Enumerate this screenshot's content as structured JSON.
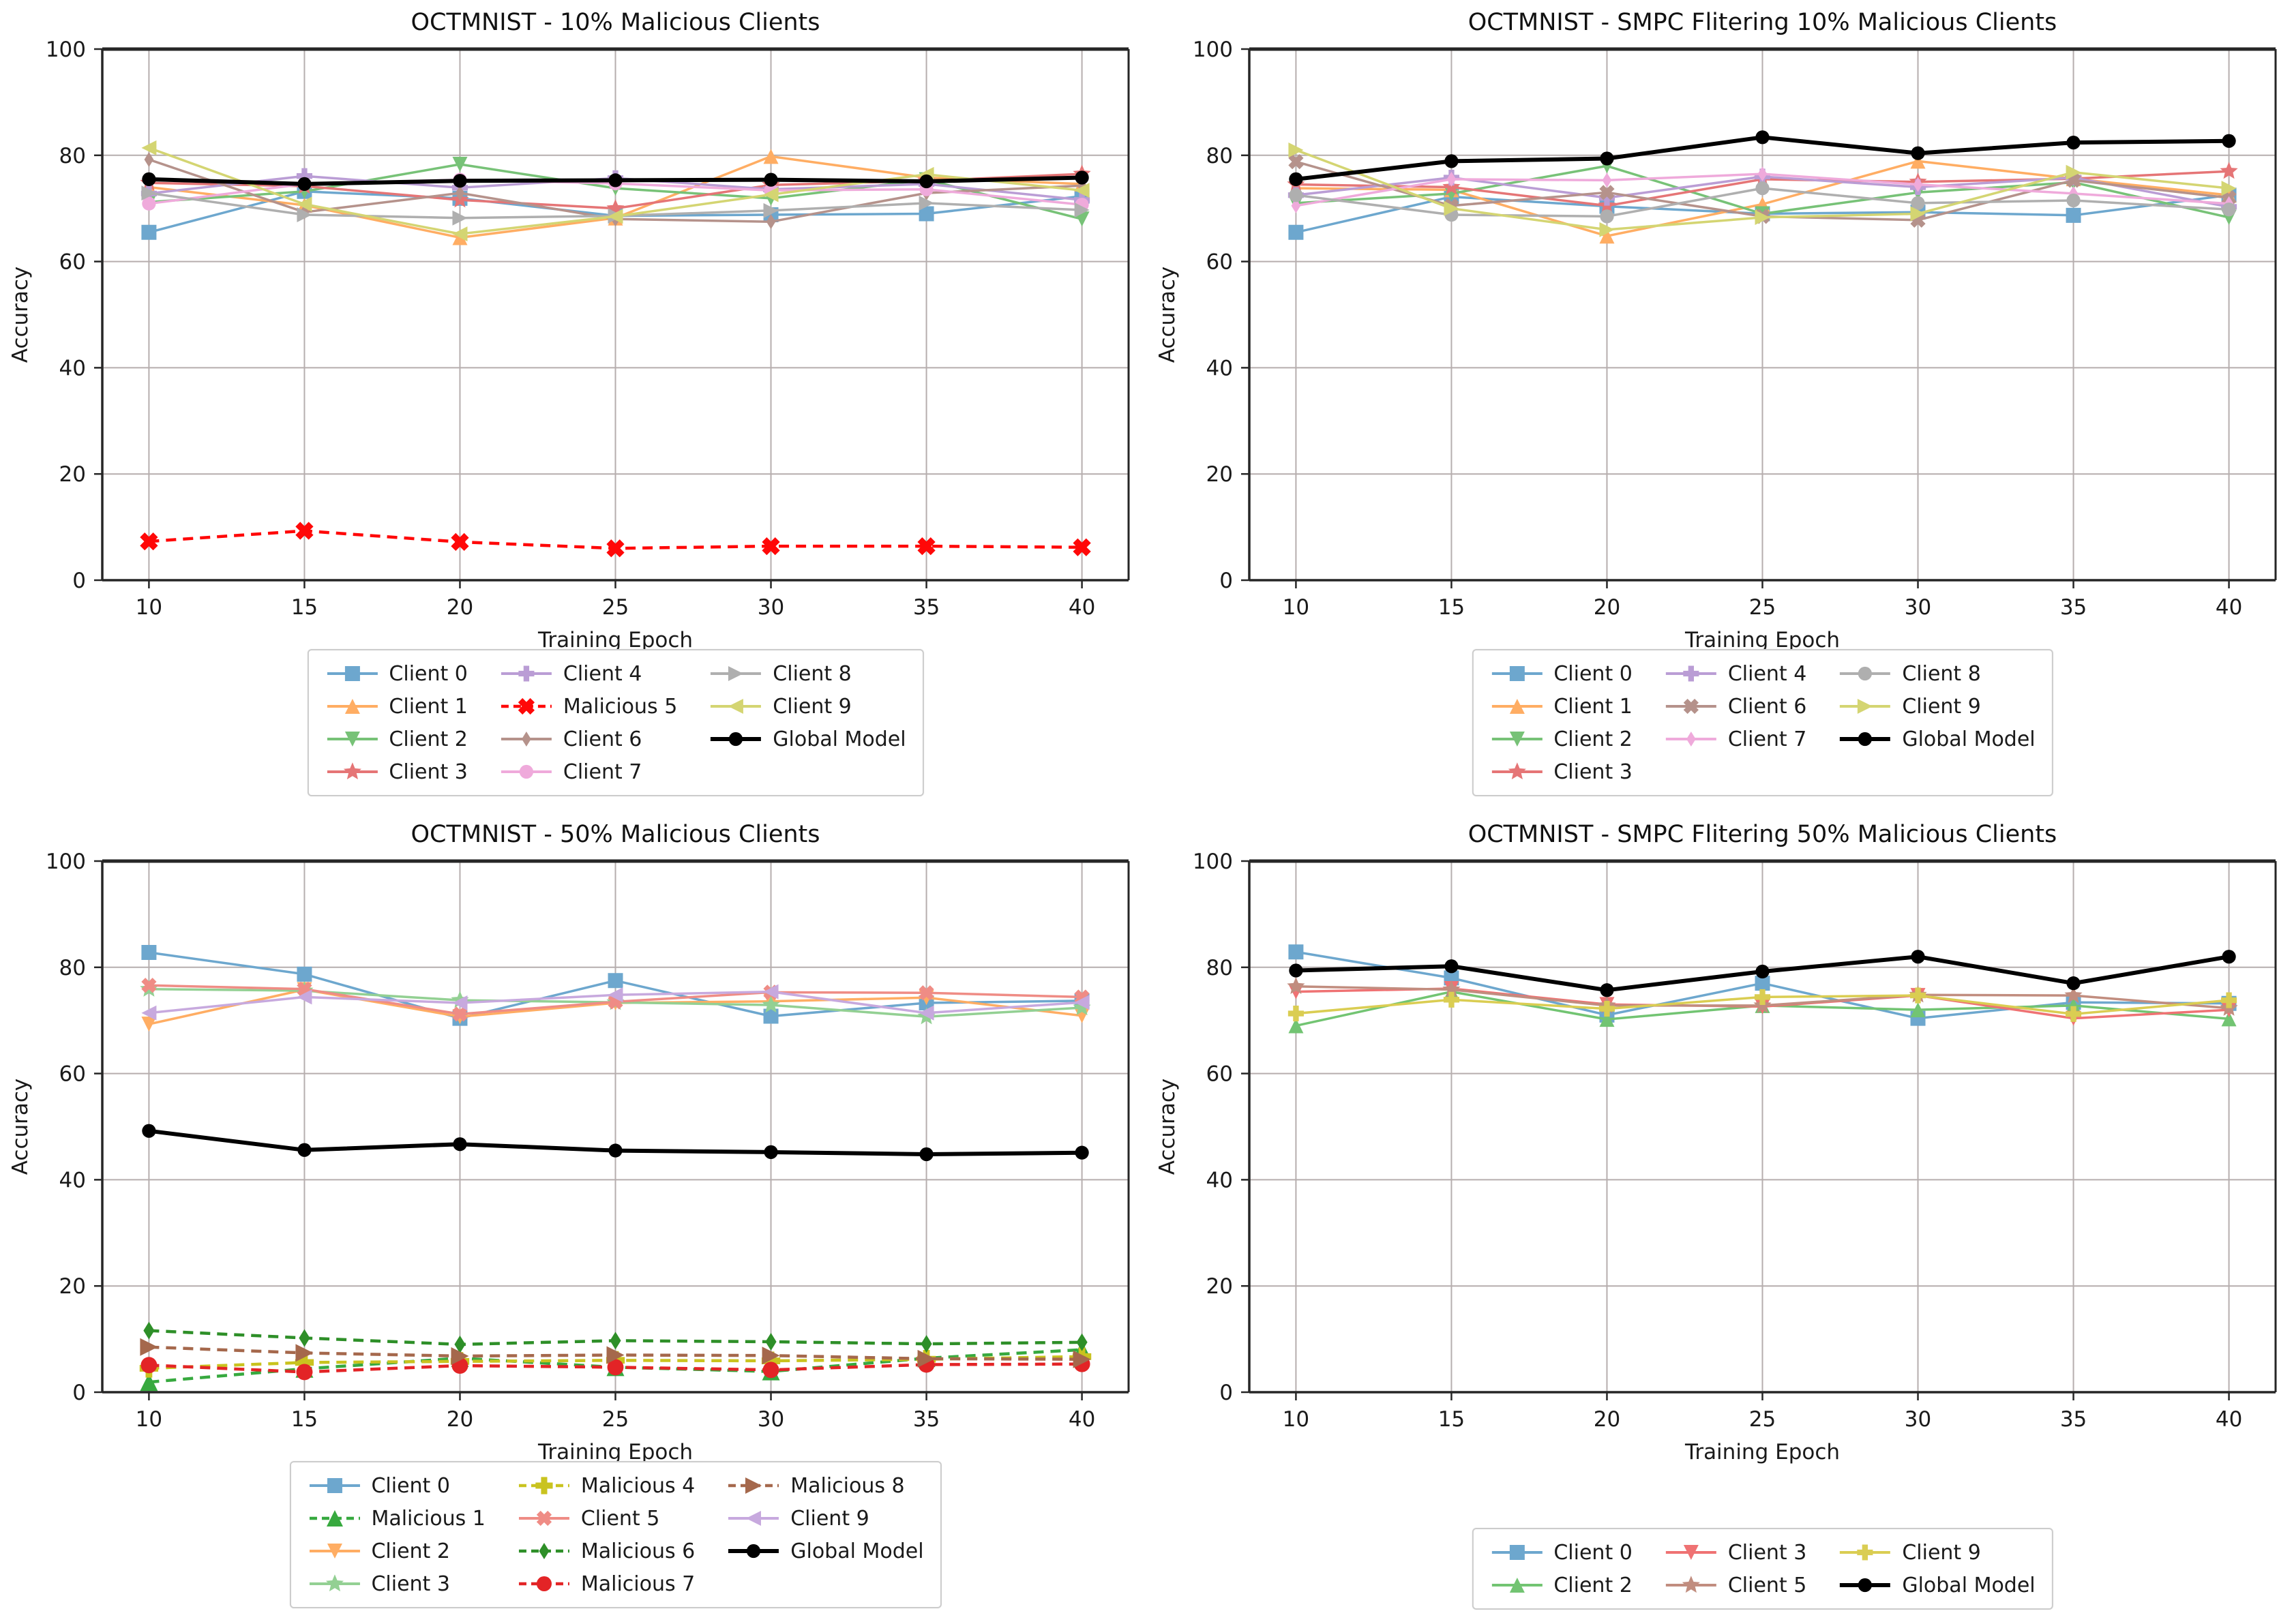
{
  "figure": {
    "background": "#ffffff",
    "grid_color": "#b6aeae",
    "spine_color": "#262626",
    "text_color": "#1a1a1a"
  },
  "chart_data": [
    {
      "type": "line",
      "id": "top-left",
      "title": "OCTMNIST - 10% Malicious Clients",
      "xlabel": "Training Epoch",
      "ylabel": "Accuracy",
      "x": [
        10,
        15,
        20,
        25,
        30,
        35,
        40
      ],
      "yticks": [
        0,
        20,
        40,
        60,
        80,
        100
      ],
      "ylim": [
        0,
        100
      ],
      "grid": true,
      "legend_position": "below-center",
      "series": [
        {
          "label": "Client 0",
          "role": "client",
          "color": "#6DA7CE",
          "marker": "s",
          "style": "solid",
          "values": [
            65.5,
            73.2,
            71.9,
            68.6,
            68.8,
            69.0,
            72.3
          ]
        },
        {
          "label": "Client 1",
          "role": "client",
          "color": "#FFAD63",
          "marker": "^",
          "style": "solid",
          "values": [
            74.0,
            70.6,
            64.5,
            68.2,
            79.8,
            75.8,
            74.6
          ]
        },
        {
          "label": "Client 2",
          "role": "client",
          "color": "#77C277",
          "marker": "v",
          "style": "solid",
          "values": [
            71.2,
            73.2,
            78.3,
            73.8,
            71.9,
            75.4,
            68.0
          ]
        },
        {
          "label": "Client 3",
          "role": "client",
          "color": "#E57576",
          "marker": "*",
          "style": "solid",
          "values": [
            74.8,
            74.2,
            71.6,
            70.0,
            74.4,
            75.2,
            76.5
          ]
        },
        {
          "label": "Client 4",
          "role": "client",
          "color": "#BA9DD5",
          "marker": "P",
          "style": "solid",
          "values": [
            72.8,
            76.1,
            73.9,
            75.7,
            73.6,
            74.6,
            71.6
          ]
        },
        {
          "label": "Malicious 5",
          "role": "malicious",
          "color": "#FF0808",
          "marker": "X",
          "style": "dashed",
          "values": [
            7.3,
            9.3,
            7.2,
            6.0,
            6.4,
            6.4,
            6.2
          ]
        },
        {
          "label": "Client 6",
          "role": "client",
          "color": "#B5928B",
          "marker": "d",
          "style": "solid",
          "values": [
            79.2,
            69.3,
            72.9,
            68.0,
            67.5,
            72.9,
            74.3
          ]
        },
        {
          "label": "Client 7",
          "role": "client",
          "color": "#EFAADB",
          "marker": "o",
          "style": "solid",
          "values": [
            70.9,
            74.6,
            75.4,
            74.7,
            73.4,
            73.6,
            70.7
          ]
        },
        {
          "label": "Client 8",
          "role": "client",
          "color": "#AFAFAF",
          "marker": ">",
          "style": "solid",
          "values": [
            72.9,
            68.8,
            68.2,
            68.6,
            69.6,
            71.0,
            69.7
          ]
        },
        {
          "label": "Client 9",
          "role": "client",
          "color": "#D4D572",
          "marker": "<",
          "style": "solid",
          "values": [
            81.4,
            70.8,
            65.2,
            68.5,
            72.6,
            76.4,
            73.4
          ]
        },
        {
          "label": "Global Model",
          "role": "global",
          "color": "#000000",
          "marker": "o",
          "style": "solid",
          "values": [
            75.5,
            74.6,
            75.2,
            75.3,
            75.4,
            75.1,
            75.8
          ]
        }
      ],
      "legend_columns": [
        [
          0,
          1,
          2,
          3
        ],
        [
          4,
          5,
          6,
          7
        ],
        [
          8,
          9,
          10
        ]
      ]
    },
    {
      "type": "line",
      "id": "top-right",
      "title": "OCTMNIST - SMPC Flitering 10% Malicious Clients",
      "xlabel": "Training Epoch",
      "ylabel": "Accuracy",
      "x": [
        10,
        15,
        20,
        25,
        30,
        35,
        40
      ],
      "yticks": [
        0,
        20,
        40,
        60,
        80,
        100
      ],
      "ylim": [
        0,
        100
      ],
      "grid": true,
      "legend_position": "below-center",
      "series": [
        {
          "label": "Client 0",
          "role": "client",
          "color": "#6DA7CE",
          "marker": "s",
          "style": "solid",
          "values": [
            65.5,
            72.2,
            70.4,
            69.0,
            69.3,
            68.7,
            72.5
          ]
        },
        {
          "label": "Client 1",
          "role": "client",
          "color": "#FFAD63",
          "marker": "^",
          "style": "solid",
          "values": [
            73.8,
            73.5,
            64.8,
            70.8,
            78.9,
            75.6,
            72.5
          ]
        },
        {
          "label": "Client 2",
          "role": "client",
          "color": "#77C277",
          "marker": "v",
          "style": "solid",
          "values": [
            71.0,
            72.8,
            78.0,
            69.0,
            73.0,
            74.9,
            68.3
          ]
        },
        {
          "label": "Client 3",
          "role": "client",
          "color": "#E57576",
          "marker": "*",
          "style": "solid",
          "values": [
            74.5,
            74.0,
            70.5,
            75.5,
            75.0,
            75.6,
            77.0
          ]
        },
        {
          "label": "Client 4",
          "role": "client",
          "color": "#BA9DD5",
          "marker": "P",
          "style": "solid",
          "values": [
            72.5,
            75.8,
            72.0,
            76.0,
            74.0,
            75.8,
            70.3
          ]
        },
        {
          "label": "Client 6",
          "role": "client",
          "color": "#B5928B",
          "marker": "X",
          "style": "solid",
          "values": [
            78.8,
            70.5,
            73.0,
            68.5,
            67.8,
            75.3,
            72.0
          ]
        },
        {
          "label": "Client 7",
          "role": "client",
          "color": "#EFAADB",
          "marker": "d",
          "style": "solid",
          "values": [
            70.5,
            75.5,
            75.3,
            76.5,
            74.5,
            72.8,
            70.9
          ]
        },
        {
          "label": "Client 8",
          "role": "client",
          "color": "#AFAFAF",
          "marker": "o",
          "style": "solid",
          "values": [
            72.5,
            68.8,
            68.5,
            73.8,
            71.0,
            71.5,
            69.8
          ]
        },
        {
          "label": "Client 9",
          "role": "client",
          "color": "#D4D572",
          "marker": ">",
          "style": "solid",
          "values": [
            81.0,
            70.0,
            66.0,
            68.3,
            69.0,
            76.8,
            73.8
          ]
        },
        {
          "label": "Global Model",
          "role": "global",
          "color": "#000000",
          "marker": "o",
          "style": "solid",
          "values": [
            75.5,
            78.9,
            79.4,
            83.4,
            80.4,
            82.4,
            82.7
          ]
        }
      ],
      "legend_columns": [
        [
          0,
          1,
          2,
          3
        ],
        [
          4,
          5,
          6
        ],
        [
          7,
          8,
          9
        ]
      ]
    },
    {
      "type": "line",
      "id": "bottom-left",
      "title": "OCTMNIST - 50% Malicious Clients",
      "xlabel": "Training Epoch",
      "ylabel": "Accuracy",
      "x": [
        10,
        15,
        20,
        25,
        30,
        35,
        40
      ],
      "yticks": [
        0,
        20,
        40,
        60,
        80,
        100
      ],
      "ylim": [
        0,
        100
      ],
      "grid": true,
      "legend_position": "below-center",
      "series": [
        {
          "label": "Client 0",
          "role": "client",
          "color": "#6DA7CE",
          "marker": "s",
          "style": "solid",
          "values": [
            82.8,
            78.7,
            70.4,
            77.5,
            70.8,
            73.3,
            73.7
          ]
        },
        {
          "label": "Malicious 1",
          "role": "malicious",
          "color": "#37A93F",
          "marker": "^",
          "style": "dashed",
          "values": [
            1.9,
            4.4,
            6.4,
            4.7,
            3.9,
            6.4,
            8.0
          ]
        },
        {
          "label": "Client 2",
          "role": "client",
          "color": "#FFAD63",
          "marker": "v",
          "style": "solid",
          "values": [
            69.3,
            75.8,
            70.7,
            73.3,
            73.6,
            74.3,
            70.9
          ]
        },
        {
          "label": "Client 3",
          "role": "client",
          "color": "#93D093",
          "marker": "*",
          "style": "solid",
          "values": [
            75.9,
            75.6,
            73.8,
            73.4,
            72.9,
            70.7,
            72.4
          ]
        },
        {
          "label": "Malicious 4",
          "role": "malicious",
          "color": "#C9C31F",
          "marker": "P",
          "style": "dashed",
          "values": [
            4.5,
            5.6,
            5.8,
            6.0,
            5.9,
            6.2,
            6.7
          ]
        },
        {
          "label": "Client 5",
          "role": "client",
          "color": "#EF8C85",
          "marker": "X",
          "style": "solid",
          "values": [
            76.6,
            75.9,
            71.2,
            73.5,
            75.3,
            75.2,
            74.4
          ]
        },
        {
          "label": "Malicious 6",
          "role": "malicious",
          "color": "#2E8F28",
          "marker": "d",
          "style": "dashed",
          "values": [
            11.6,
            10.2,
            9.0,
            9.7,
            9.5,
            9.1,
            9.4
          ]
        },
        {
          "label": "Malicious 7",
          "role": "malicious",
          "color": "#E32426",
          "marker": "o",
          "style": "dashed",
          "values": [
            5.1,
            3.8,
            5.0,
            4.7,
            4.2,
            5.2,
            5.3
          ]
        },
        {
          "label": "Malicious 8",
          "role": "malicious",
          "color": "#A5684C",
          "marker": ">",
          "style": "dashed",
          "values": [
            8.5,
            7.4,
            6.8,
            7.0,
            6.9,
            6.3,
            6.2
          ]
        },
        {
          "label": "Client 9",
          "role": "client",
          "color": "#C7A9DE",
          "marker": "<",
          "style": "solid",
          "values": [
            71.4,
            74.4,
            73.3,
            74.8,
            75.4,
            71.4,
            73.4
          ]
        },
        {
          "label": "Global Model",
          "role": "global",
          "color": "#000000",
          "marker": "o",
          "style": "solid",
          "values": [
            49.2,
            45.6,
            46.7,
            45.5,
            45.2,
            44.8,
            45.1
          ]
        }
      ],
      "legend_columns": [
        [
          0,
          1,
          2,
          3
        ],
        [
          4,
          5,
          6,
          7
        ],
        [
          8,
          9,
          10
        ]
      ]
    },
    {
      "type": "line",
      "id": "bottom-right",
      "title": "OCTMNIST - SMPC Flitering 50% Malicious Clients",
      "xlabel": "Training Epoch",
      "ylabel": "Accuracy",
      "x": [
        10,
        15,
        20,
        25,
        30,
        35,
        40
      ],
      "yticks": [
        0,
        20,
        40,
        60,
        80,
        100
      ],
      "ylim": [
        0,
        100
      ],
      "grid": true,
      "legend_position": "below-center",
      "series": [
        {
          "label": "Client 0",
          "role": "client",
          "color": "#6DA7CE",
          "marker": "s",
          "style": "solid",
          "values": [
            82.9,
            78.0,
            71.0,
            77.0,
            70.4,
            73.4,
            73.2
          ]
        },
        {
          "label": "Client 2",
          "role": "client",
          "color": "#72C472",
          "marker": "^",
          "style": "solid",
          "values": [
            69.0,
            75.4,
            70.2,
            72.8,
            72.0,
            72.8,
            70.3
          ]
        },
        {
          "label": "Client 3",
          "role": "client",
          "color": "#EF7273",
          "marker": "v",
          "style": "solid",
          "values": [
            75.4,
            76.0,
            73.0,
            72.6,
            74.7,
            70.4,
            72.0
          ]
        },
        {
          "label": "Client 5",
          "role": "client",
          "color": "#C18D7F",
          "marker": "*",
          "style": "solid",
          "values": [
            76.4,
            75.8,
            72.8,
            72.8,
            74.8,
            74.7,
            72.3
          ]
        },
        {
          "label": "Client 9",
          "role": "client",
          "color": "#DACD52",
          "marker": "P",
          "style": "solid",
          "values": [
            71.3,
            73.9,
            72.2,
            74.4,
            74.7,
            71.2,
            73.8
          ]
        },
        {
          "label": "Global Model",
          "role": "global",
          "color": "#000000",
          "marker": "o",
          "style": "solid",
          "values": [
            79.4,
            80.2,
            75.7,
            79.2,
            82.0,
            77.0,
            82.0
          ]
        }
      ],
      "legend_columns": [
        [
          0,
          1
        ],
        [
          2,
          3
        ],
        [
          4,
          5
        ]
      ]
    }
  ]
}
